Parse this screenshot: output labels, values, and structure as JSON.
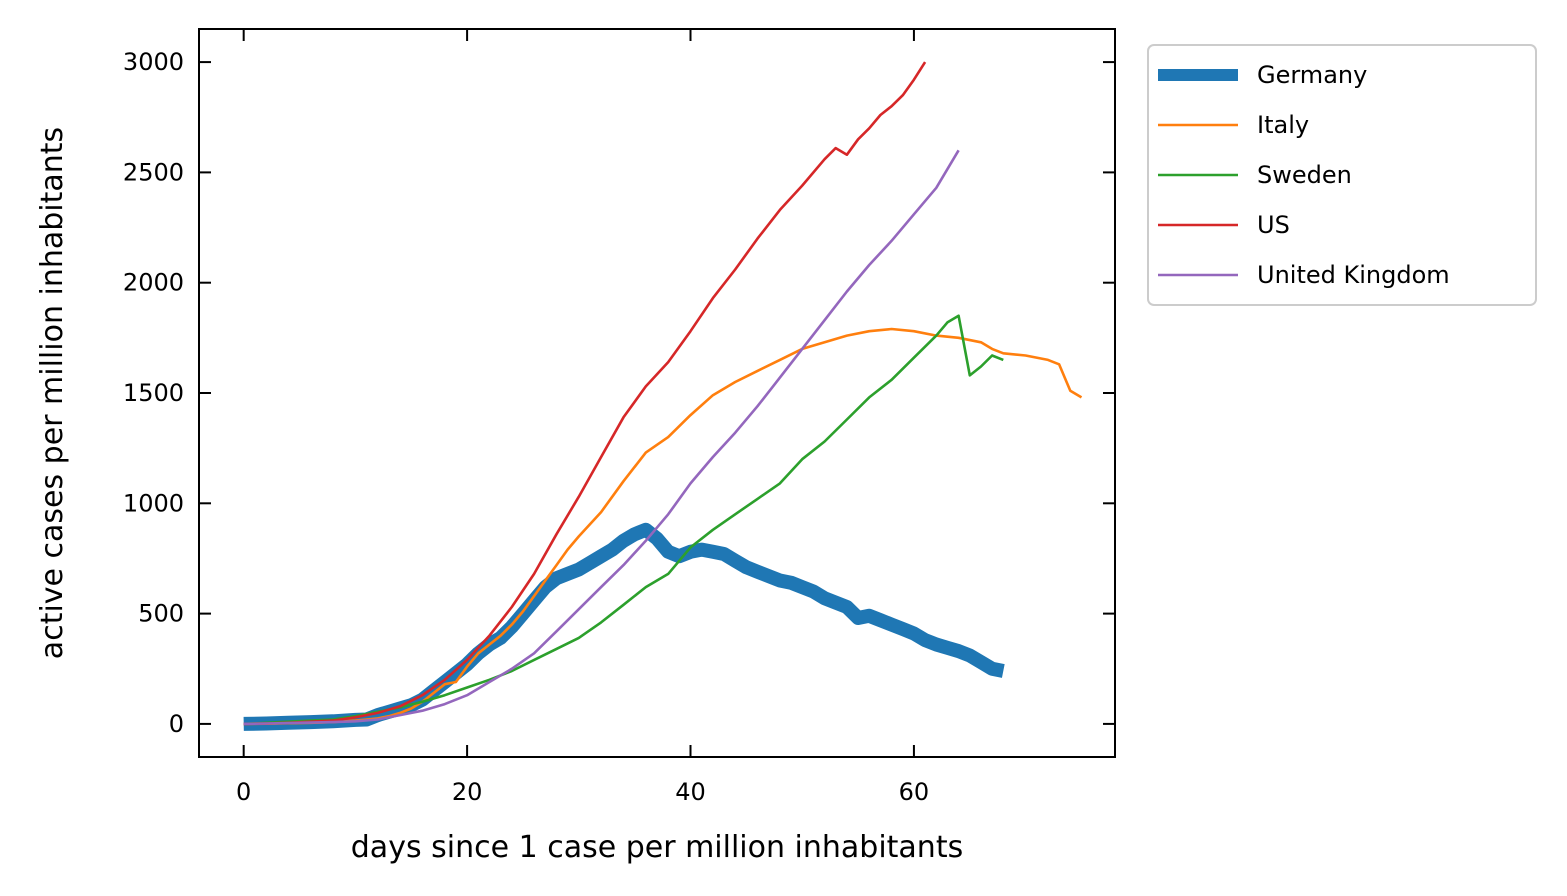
{
  "chart_data": {
    "type": "line",
    "xlabel": "days since 1 case per million inhabitants",
    "ylabel": "active cases per million inhabitants",
    "xlim": [
      -4,
      78
    ],
    "ylim": [
      -150,
      3150
    ],
    "xticks": [
      0,
      20,
      40,
      60
    ],
    "yticks": [
      0,
      500,
      1000,
      1500,
      2000,
      2500,
      3000
    ],
    "grid": false,
    "legend_position": "outside-top-right",
    "series": [
      {
        "name": "Germany",
        "color": "#1f77b4",
        "width": "thick",
        "x": [
          0,
          2,
          4,
          6,
          8,
          10,
          11,
          12,
          13,
          14,
          15,
          16,
          17,
          18,
          19,
          20,
          21,
          22,
          23,
          24,
          25,
          26,
          27,
          28,
          29,
          30,
          31,
          32,
          33,
          34,
          35,
          36,
          37,
          38,
          39,
          40,
          41,
          42,
          43,
          44,
          45,
          46,
          47,
          48,
          49,
          50,
          51,
          52,
          53,
          54,
          55,
          56,
          57,
          58,
          59,
          60,
          61,
          62,
          63,
          64,
          65,
          66,
          67,
          68
        ],
        "y": [
          0,
          2,
          5,
          8,
          12,
          18,
          20,
          40,
          55,
          70,
          85,
          110,
          150,
          190,
          230,
          270,
          320,
          360,
          390,
          440,
          500,
          560,
          620,
          660,
          680,
          700,
          730,
          760,
          790,
          830,
          860,
          880,
          840,
          780,
          760,
          780,
          790,
          780,
          770,
          740,
          710,
          690,
          670,
          650,
          640,
          620,
          600,
          570,
          550,
          530,
          480,
          490,
          470,
          450,
          430,
          410,
          380,
          360,
          345,
          330,
          310,
          280,
          250,
          240
        ]
      },
      {
        "name": "Italy",
        "color": "#ff7f0e",
        "width": "thin",
        "x": [
          0,
          2,
          4,
          6,
          8,
          10,
          11,
          12,
          13,
          14,
          15,
          16,
          17,
          18,
          19,
          20,
          21,
          22,
          23,
          24,
          25,
          26,
          27,
          28,
          29,
          30,
          32,
          34,
          36,
          38,
          40,
          42,
          44,
          46,
          48,
          50,
          52,
          54,
          56,
          58,
          60,
          62,
          64,
          66,
          67,
          68,
          70,
          72,
          73,
          74,
          75
        ],
        "y": [
          0,
          1,
          3,
          5,
          8,
          15,
          20,
          25,
          35,
          50,
          70,
          100,
          140,
          180,
          190,
          260,
          320,
          360,
          400,
          450,
          510,
          580,
          650,
          720,
          790,
          850,
          960,
          1100,
          1230,
          1300,
          1400,
          1490,
          1550,
          1600,
          1650,
          1700,
          1730,
          1760,
          1780,
          1790,
          1780,
          1760,
          1750,
          1730,
          1700,
          1680,
          1670,
          1650,
          1630,
          1510,
          1480
        ]
      },
      {
        "name": "Sweden",
        "color": "#2ca02c",
        "width": "thin",
        "x": [
          0,
          2,
          4,
          6,
          8,
          10,
          12,
          14,
          16,
          18,
          20,
          22,
          24,
          26,
          28,
          30,
          32,
          34,
          36,
          38,
          40,
          42,
          44,
          46,
          48,
          50,
          52,
          54,
          56,
          58,
          60,
          62,
          63,
          64,
          65,
          66,
          67,
          68
        ],
        "y": [
          0,
          5,
          10,
          15,
          20,
          35,
          55,
          75,
          100,
          130,
          165,
          200,
          240,
          290,
          340,
          390,
          460,
          540,
          620,
          680,
          800,
          880,
          950,
          1020,
          1090,
          1200,
          1280,
          1380,
          1480,
          1560,
          1660,
          1760,
          1820,
          1850,
          1580,
          1620,
          1670,
          1650
        ]
      },
      {
        "name": "US",
        "color": "#d62728",
        "width": "thin",
        "x": [
          0,
          2,
          4,
          6,
          8,
          10,
          12,
          14,
          16,
          18,
          20,
          22,
          24,
          26,
          28,
          30,
          32,
          34,
          36,
          38,
          40,
          42,
          44,
          46,
          48,
          50,
          52,
          53,
          54,
          55,
          56,
          57,
          58,
          59,
          60,
          61
        ],
        "y": [
          0,
          2,
          5,
          10,
          15,
          30,
          50,
          80,
          130,
          200,
          290,
          400,
          530,
          680,
          860,
          1030,
          1210,
          1390,
          1530,
          1640,
          1780,
          1930,
          2060,
          2200,
          2330,
          2440,
          2560,
          2610,
          2580,
          2650,
          2700,
          2760,
          2800,
          2850,
          2920,
          3000
        ]
      },
      {
        "name": "United Kingdom",
        "color": "#9467bd",
        "width": "thin",
        "x": [
          0,
          2,
          4,
          6,
          8,
          10,
          12,
          14,
          16,
          18,
          20,
          22,
          24,
          26,
          28,
          30,
          32,
          34,
          36,
          38,
          40,
          42,
          44,
          46,
          48,
          50,
          52,
          54,
          56,
          58,
          60,
          62,
          64
        ],
        "y": [
          0,
          2,
          4,
          6,
          8,
          12,
          20,
          40,
          60,
          90,
          130,
          190,
          250,
          320,
          420,
          520,
          620,
          720,
          830,
          950,
          1090,
          1210,
          1320,
          1440,
          1570,
          1700,
          1830,
          1960,
          2080,
          2190,
          2310,
          2430,
          2600
        ]
      }
    ]
  }
}
